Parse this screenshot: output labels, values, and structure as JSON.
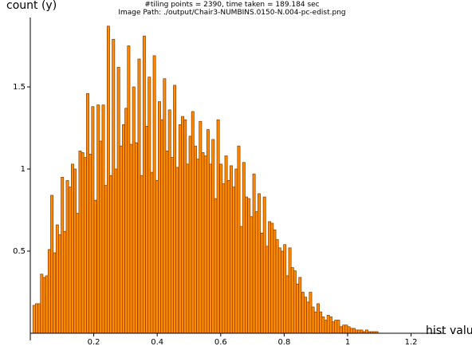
{
  "chart_data": {
    "type": "bar",
    "title_lines": [
      "#tiling points = 2390, time taken = 189.184 sec",
      "Image Path: ./output/Chair3-NUMBINS.0150-N.004-pc-edist.png"
    ],
    "xlabel": "hist value",
    "ylabel": "count (y)",
    "xlim": [
      0.0,
      1.25
    ],
    "ylim": [
      0.0,
      1.92
    ],
    "xticks": [
      0.2,
      0.4,
      0.6,
      0.8,
      1.0,
      1.2
    ],
    "xtick_labels": [
      "0.2",
      "0.4",
      "0.6",
      "0.8",
      "1",
      "1.2"
    ],
    "yticks": [
      0.5,
      1.0,
      1.5
    ],
    "ytick_labels": [
      "0.5",
      "1",
      "1.5"
    ],
    "bar_width": 0.00806,
    "bar_fill": "#ff8c00",
    "bar_edge": "#8b3a00",
    "x": [
      0.012,
      0.02,
      0.028,
      0.036,
      0.044,
      0.052,
      0.06,
      0.068,
      0.076,
      0.085,
      0.093,
      0.101,
      0.109,
      0.117,
      0.125,
      0.133,
      0.141,
      0.149,
      0.157,
      0.165,
      0.173,
      0.181,
      0.189,
      0.197,
      0.205,
      0.214,
      0.222,
      0.23,
      0.238,
      0.246,
      0.254,
      0.262,
      0.27,
      0.278,
      0.286,
      0.294,
      0.302,
      0.31,
      0.318,
      0.326,
      0.334,
      0.343,
      0.351,
      0.359,
      0.367,
      0.375,
      0.383,
      0.391,
      0.399,
      0.407,
      0.415,
      0.423,
      0.431,
      0.439,
      0.447,
      0.455,
      0.463,
      0.472,
      0.48,
      0.488,
      0.496,
      0.504,
      0.512,
      0.52,
      0.528,
      0.536,
      0.544,
      0.552,
      0.56,
      0.568,
      0.576,
      0.584,
      0.592,
      0.601,
      0.609,
      0.617,
      0.625,
      0.633,
      0.641,
      0.649,
      0.657,
      0.665,
      0.673,
      0.681,
      0.689,
      0.697,
      0.705,
      0.713,
      0.721,
      0.73,
      0.738,
      0.746,
      0.754,
      0.762,
      0.77,
      0.778,
      0.786,
      0.794,
      0.802,
      0.81,
      0.818,
      0.826,
      0.834,
      0.842,
      0.85,
      0.859,
      0.867,
      0.875,
      0.883,
      0.891,
      0.899,
      0.907,
      0.915,
      0.923,
      0.931,
      0.939,
      0.947,
      0.955,
      0.963,
      0.971,
      0.979,
      0.988,
      0.996,
      1.004,
      1.012,
      1.02,
      1.028,
      1.036,
      1.044,
      1.052,
      1.06,
      1.068,
      1.076,
      1.084,
      1.092,
      1.1,
      1.108,
      1.117,
      1.125,
      1.133,
      1.141,
      1.149,
      1.157,
      1.165,
      1.173,
      1.181,
      1.189,
      1.197,
      1.205,
      1.213
    ],
    "values": [
      0.17,
      0.18,
      0.18,
      0.36,
      0.34,
      0.35,
      0.51,
      0.84,
      0.49,
      0.66,
      0.6,
      0.95,
      0.62,
      0.93,
      0.89,
      1.03,
      1.0,
      0.73,
      1.11,
      1.1,
      1.07,
      1.46,
      1.09,
      1.38,
      0.81,
      1.39,
      1.17,
      1.39,
      0.9,
      1.87,
      0.96,
      1.79,
      1.0,
      1.62,
      1.14,
      1.27,
      1.37,
      1.75,
      1.15,
      1.5,
      1.16,
      1.67,
      0.96,
      1.81,
      1.26,
      1.56,
      0.98,
      1.69,
      0.93,
      1.41,
      1.3,
      1.55,
      1.11,
      1.36,
      1.07,
      1.51,
      1.01,
      1.27,
      1.32,
      1.3,
      1.03,
      1.2,
      1.35,
      1.14,
      1.06,
      1.29,
      1.1,
      1.08,
      1.24,
      1.03,
      1.18,
      0.82,
      1.3,
      1.03,
      0.91,
      1.08,
      0.93,
      1.02,
      0.89,
      1.0,
      1.14,
      0.65,
      1.04,
      0.83,
      0.82,
      0.71,
      0.97,
      0.74,
      0.85,
      0.61,
      0.83,
      0.53,
      0.68,
      0.67,
      0.63,
      0.57,
      0.52,
      0.5,
      0.54,
      0.35,
      0.52,
      0.4,
      0.38,
      0.3,
      0.34,
      0.25,
      0.22,
      0.19,
      0.25,
      0.16,
      0.13,
      0.18,
      0.13,
      0.1,
      0.08,
      0.11,
      0.1,
      0.07,
      0.08,
      0.08,
      0.04,
      0.05,
      0.05,
      0.04,
      0.03,
      0.03,
      0.02,
      0.02,
      0.02,
      0.01,
      0.02,
      0.01,
      0.01,
      0.01,
      0.01,
      0.0,
      0.0,
      0.0,
      0.0,
      0.0,
      0.0,
      0.0,
      0.0,
      0.0,
      0.0,
      0.0,
      0.0,
      0.0,
      0.0,
      0.0
    ]
  }
}
